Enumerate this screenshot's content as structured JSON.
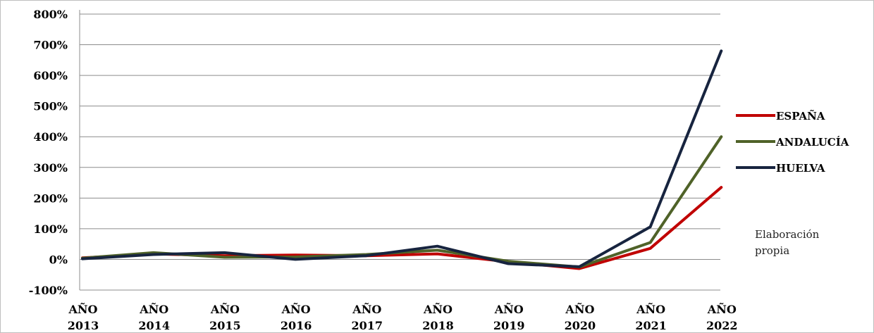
{
  "chart_data": {
    "type": "line",
    "categories": [
      [
        "AÑO",
        "2013"
      ],
      [
        "AÑO",
        "2014"
      ],
      [
        "AÑO",
        "2015"
      ],
      [
        "AÑO",
        "2016"
      ],
      [
        "AÑO",
        "2017"
      ],
      [
        "AÑO",
        "2018"
      ],
      [
        "AÑO",
        "2019"
      ],
      [
        "AÑO",
        "2020"
      ],
      [
        "AÑO",
        "2021"
      ],
      [
        "AÑO",
        "2022"
      ]
    ],
    "y_ticks": [
      "800%",
      "700%",
      "600%",
      "500%",
      "400%",
      "300%",
      "200%",
      "100%",
      "0%",
      "-100%"
    ],
    "ylim": [
      -100,
      800
    ],
    "grid": true,
    "legend_position": "right",
    "series": [
      {
        "name": "ESPAÑA",
        "color": "#c00000",
        "values": [
          5,
          18,
          12,
          14,
          12,
          18,
          -8,
          -30,
          36,
          235
        ]
      },
      {
        "name": "ANDALUCÍA",
        "color": "#4f6228",
        "values": [
          4,
          22,
          7,
          8,
          16,
          30,
          -6,
          -25,
          55,
          400
        ]
      },
      {
        "name": "HUELVA",
        "color": "#17243f",
        "values": [
          2,
          16,
          22,
          0,
          12,
          43,
          -14,
          -24,
          106,
          680
        ]
      }
    ],
    "annotation": [
      "Elaboración",
      "propia"
    ]
  }
}
